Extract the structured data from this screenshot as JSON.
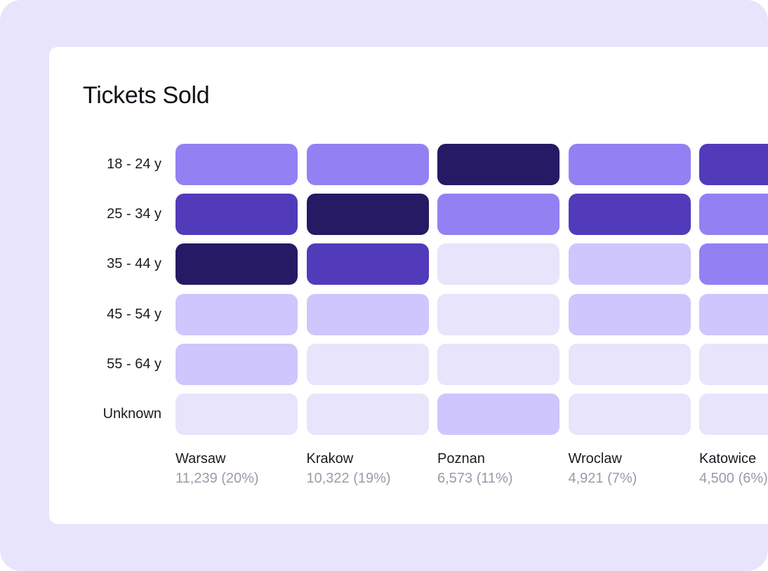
{
  "chart_data": {
    "type": "heatmap",
    "title": "Tickets Sold",
    "rows": [
      "18 - 24 y",
      "25 - 34 y",
      "35 - 44 y",
      "45 - 54 y",
      "55 - 64 y",
      "Unknown"
    ],
    "columns": [
      {
        "name": "Warsaw",
        "total": "11,239 (20%)"
      },
      {
        "name": "Krakow",
        "total": "10,322 (19%)"
      },
      {
        "name": "Poznan",
        "total": "6,573 (11%)"
      },
      {
        "name": "Wroclaw",
        "total": "4,921 (7%)"
      },
      {
        "name": "Katowice",
        "total": "4,500 (6%)"
      }
    ],
    "levels": [
      [
        3,
        3,
        5,
        3,
        4
      ],
      [
        4,
        5,
        3,
        4,
        3
      ],
      [
        5,
        4,
        1,
        2,
        3
      ],
      [
        2,
        2,
        1,
        2,
        2
      ],
      [
        2,
        1,
        1,
        1,
        1
      ],
      [
        1,
        1,
        2,
        1,
        1
      ]
    ],
    "level_colors": {
      "1": "#e8e4fb",
      "2": "#cec6fc",
      "3": "#9381f4",
      "4": "#513bbb",
      "5": "#261a65"
    },
    "legend": "none",
    "grid": false
  },
  "colors": {
    "background": "#e8e4fc",
    "card": "#ffffff",
    "label_text": "#1c1b22",
    "total_text": "#9c9aab"
  }
}
